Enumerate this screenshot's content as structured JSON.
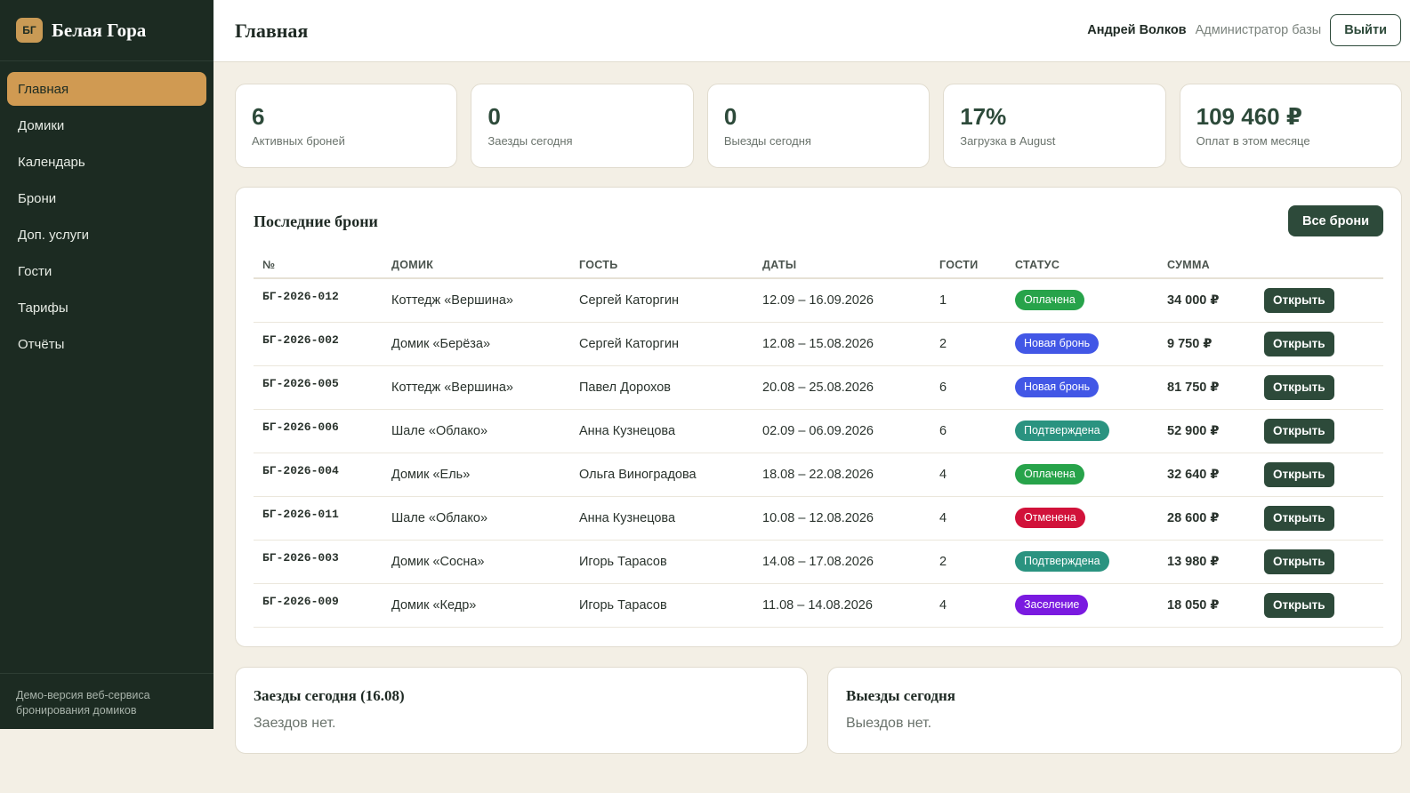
{
  "brand": {
    "logo": "БГ",
    "name": "Белая Гора"
  },
  "sidebar": {
    "items": [
      {
        "label": "Главная",
        "active": true
      },
      {
        "label": "Домики",
        "active": false
      },
      {
        "label": "Календарь",
        "active": false
      },
      {
        "label": "Брони",
        "active": false
      },
      {
        "label": "Доп. услуги",
        "active": false
      },
      {
        "label": "Гости",
        "active": false
      },
      {
        "label": "Тарифы",
        "active": false
      },
      {
        "label": "Отчёты",
        "active": false
      }
    ],
    "footer": "Демо-версия веб-сервиса бронирования домиков"
  },
  "header": {
    "title": "Главная",
    "user_name": "Андрей Волков",
    "user_role": "Администратор базы",
    "logout_label": "Выйти"
  },
  "stats": [
    {
      "value": "6",
      "label": "Активных броней"
    },
    {
      "value": "0",
      "label": "Заезды сегодня"
    },
    {
      "value": "0",
      "label": "Выезды сегодня"
    },
    {
      "value": "17%",
      "label": "Загрузка в August"
    },
    {
      "value": "109 460 ₽",
      "label": "Оплат в этом месяце"
    }
  ],
  "bookings": {
    "title": "Последние брони",
    "all_label": "Все брони",
    "open_label": "Открыть",
    "columns": [
      "№",
      "ДОМИК",
      "ГОСТЬ",
      "ДАТЫ",
      "ГОСТИ",
      "СТАТУС",
      "СУММА",
      ""
    ],
    "rows": [
      {
        "id": "БГ-2026-012",
        "house": "Коттедж «Вершина»",
        "guest": "Сергей Каторгин",
        "dates": "12.09 – 16.09.2026",
        "guests": "1",
        "status": "Оплачена",
        "status_kind": "paid",
        "sum": "34 000 ₽"
      },
      {
        "id": "БГ-2026-002",
        "house": "Домик «Берёза»",
        "guest": "Сергей Каторгин",
        "dates": "12.08 – 15.08.2026",
        "guests": "2",
        "status": "Новая бронь",
        "status_kind": "new",
        "sum": "9 750 ₽"
      },
      {
        "id": "БГ-2026-005",
        "house": "Коттедж «Вершина»",
        "guest": "Павел Дорохов",
        "dates": "20.08 – 25.08.2026",
        "guests": "6",
        "status": "Новая бронь",
        "status_kind": "new",
        "sum": "81 750 ₽"
      },
      {
        "id": "БГ-2026-006",
        "house": "Шале «Облако»",
        "guest": "Анна Кузнецова",
        "dates": "02.09 – 06.09.2026",
        "guests": "6",
        "status": "Подтверждена",
        "status_kind": "confirmed",
        "sum": "52 900 ₽"
      },
      {
        "id": "БГ-2026-004",
        "house": "Домик «Ель»",
        "guest": "Ольга Виноградова",
        "dates": "18.08 – 22.08.2026",
        "guests": "4",
        "status": "Оплачена",
        "status_kind": "paid",
        "sum": "32 640 ₽"
      },
      {
        "id": "БГ-2026-011",
        "house": "Шале «Облако»",
        "guest": "Анна Кузнецова",
        "dates": "10.08 – 12.08.2026",
        "guests": "4",
        "status": "Отменена",
        "status_kind": "cancelled",
        "sum": "28 600 ₽"
      },
      {
        "id": "БГ-2026-003",
        "house": "Домик «Сосна»",
        "guest": "Игорь Тарасов",
        "dates": "14.08 – 17.08.2026",
        "guests": "2",
        "status": "Подтверждена",
        "status_kind": "confirmed",
        "sum": "13 980 ₽"
      },
      {
        "id": "БГ-2026-009",
        "house": "Домик «Кедр»",
        "guest": "Игорь Тарасов",
        "dates": "11.08 – 14.08.2026",
        "guests": "4",
        "status": "Заселение",
        "status_kind": "checkin",
        "sum": "18 050 ₽"
      }
    ]
  },
  "arrivals": {
    "title": "Заезды сегодня (16.08)",
    "empty": "Заездов нет."
  },
  "departures": {
    "title": "Выезды сегодня",
    "empty": "Выездов нет."
  },
  "colors": {
    "sidebar_bg": "#1c2b22",
    "accent": "#d09a52",
    "primary": "#2d4a3a",
    "page_bg": "#f3efe5",
    "paid": "#27a34a",
    "new": "#4257e6",
    "confirmed": "#2a9380",
    "cancelled": "#d1123a",
    "checkin": "#7a1ae0"
  }
}
